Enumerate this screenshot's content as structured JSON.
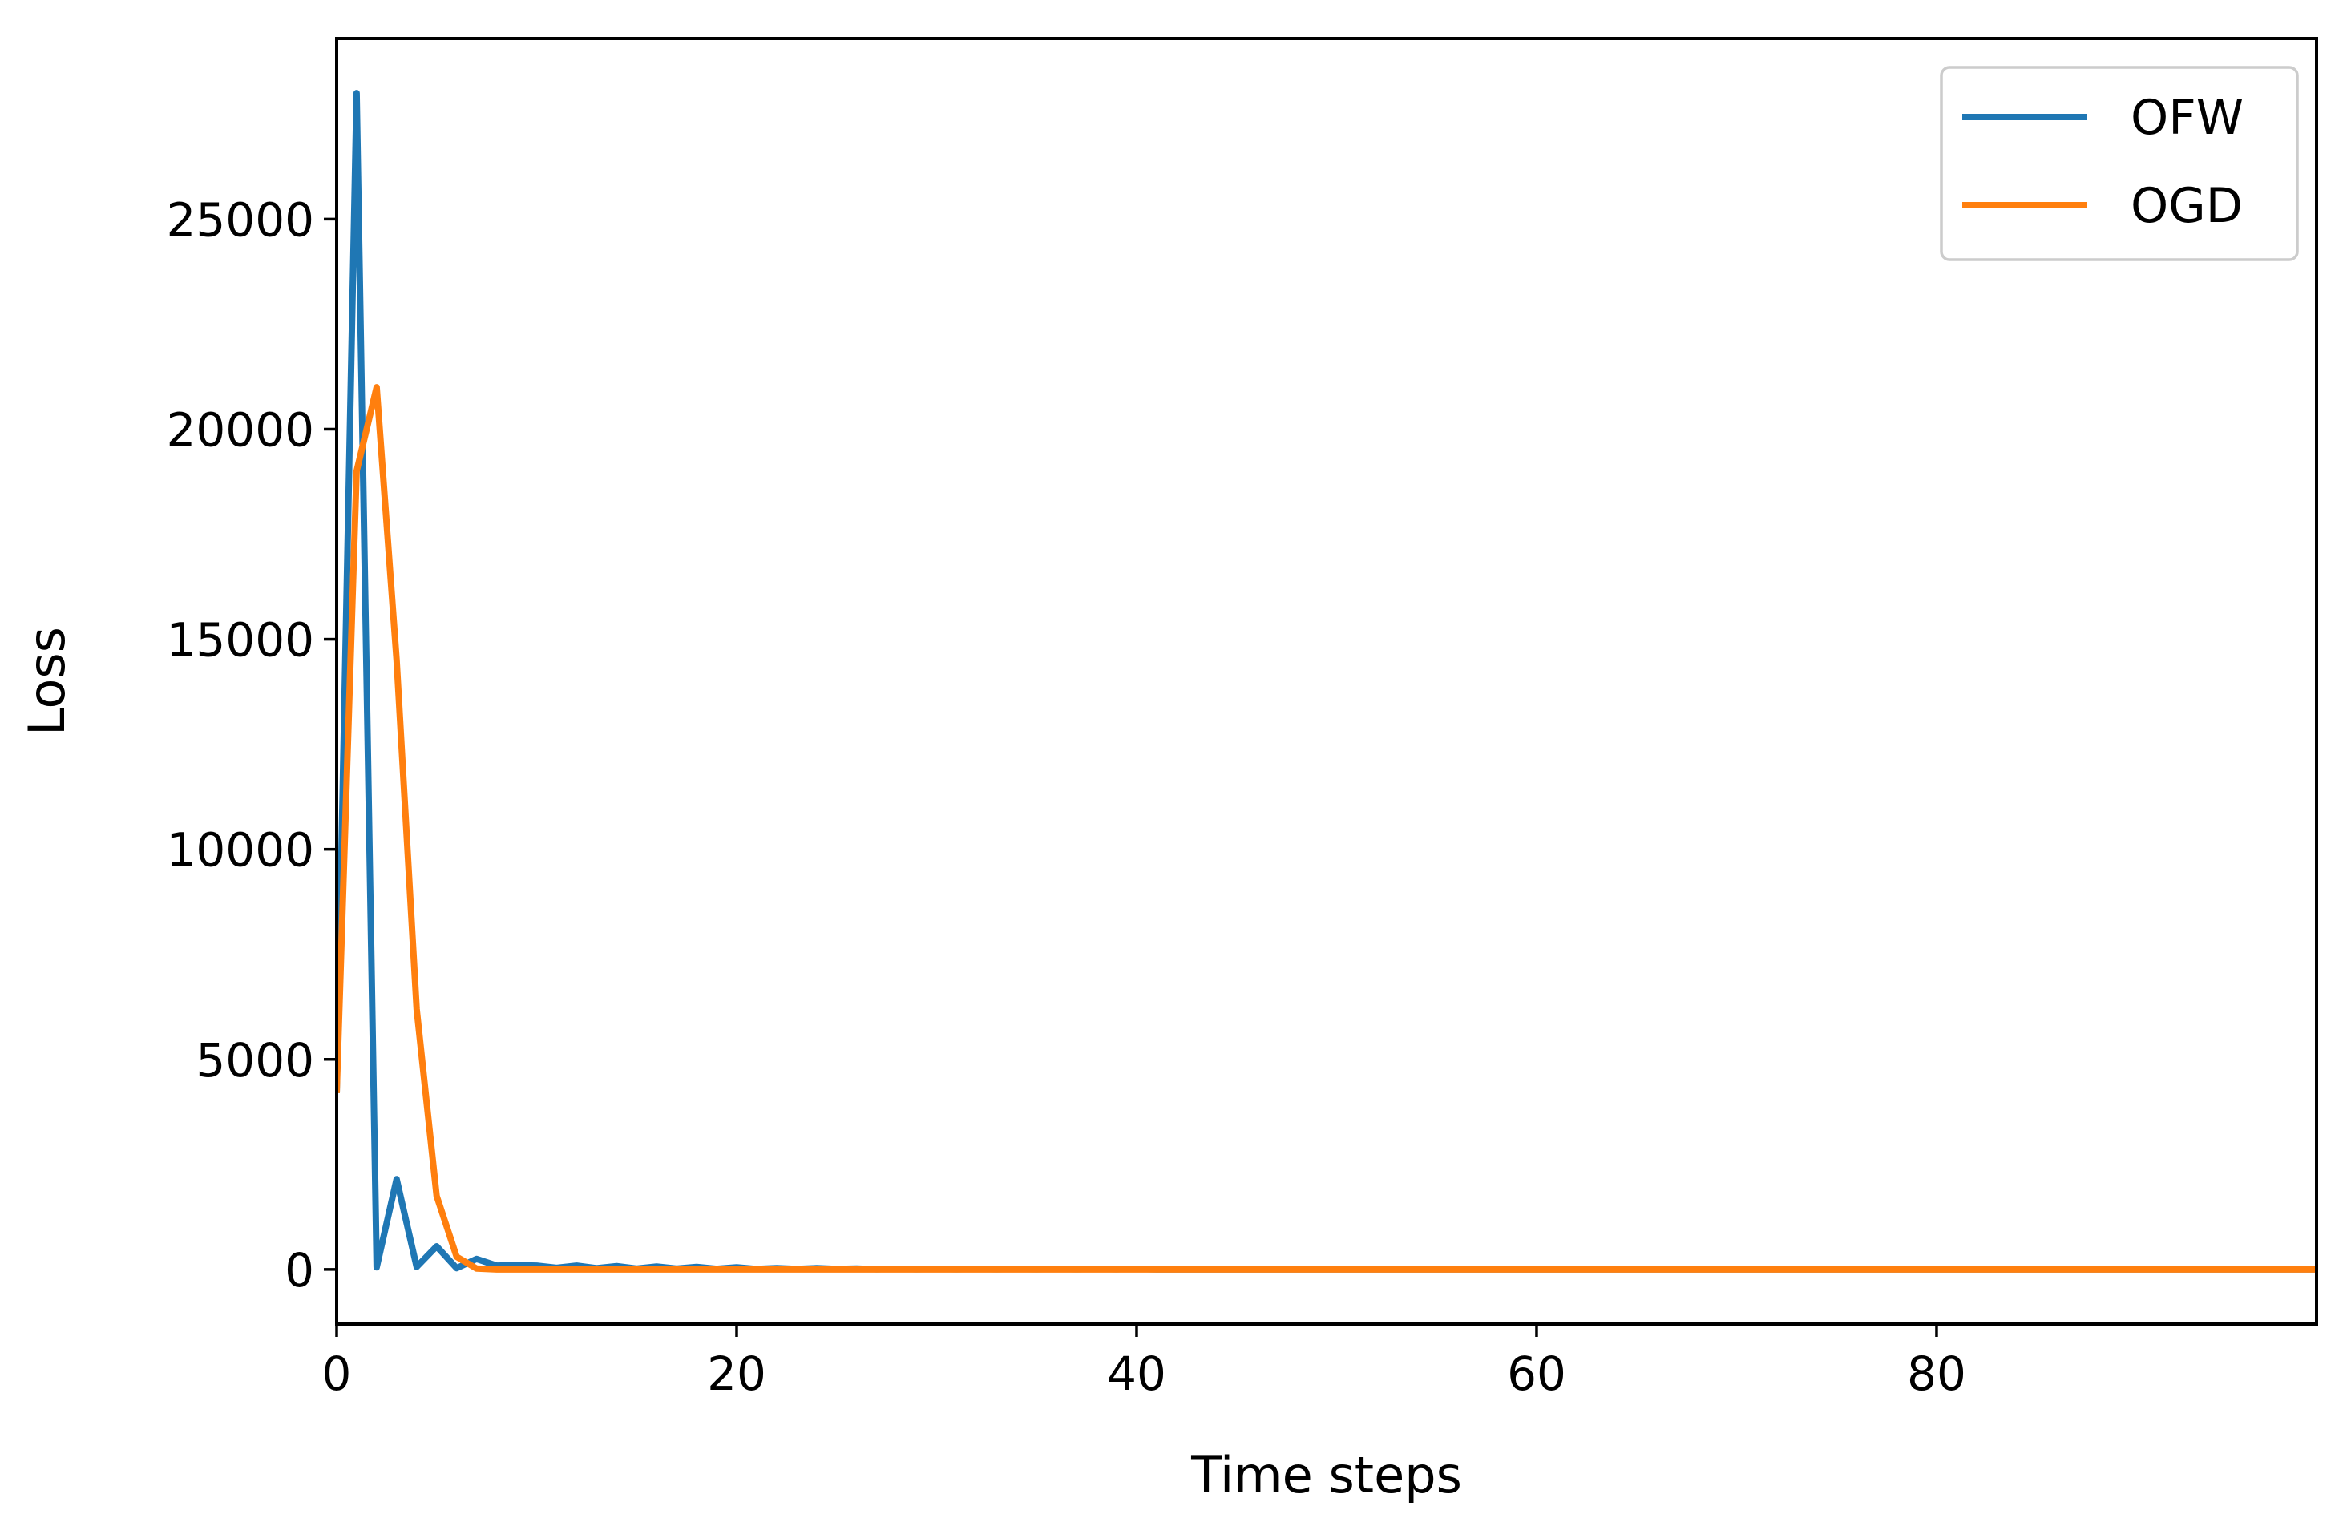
{
  "chart_data": {
    "type": "line",
    "title": "",
    "xlabel": "Time steps",
    "ylabel": "Loss",
    "xlim": [
      0,
      99
    ],
    "ylim": [
      -1300,
      29300
    ],
    "xticks": [
      0,
      20,
      40,
      60,
      80
    ],
    "xtick_labels": [
      "0",
      "20",
      "40",
      "60",
      "80"
    ],
    "yticks": [
      0,
      5000,
      10000,
      15000,
      20000,
      25000
    ],
    "ytick_labels": [
      "0",
      "5000",
      "10000",
      "15000",
      "20000",
      "25000"
    ],
    "grid": false,
    "legend_position": "top-right",
    "series": [
      {
        "name": "OFW",
        "color": "#1f77b4",
        "x": [
          0,
          1,
          2,
          3,
          4,
          5,
          6,
          7,
          8,
          9,
          10,
          11,
          12,
          13,
          14,
          15,
          16,
          17,
          18,
          19,
          20,
          21,
          22,
          23,
          24,
          25,
          26,
          27,
          28,
          29,
          30,
          31,
          32,
          33,
          34,
          35,
          36,
          37,
          38,
          39,
          40,
          41,
          42,
          43,
          44,
          45,
          46,
          47,
          48,
          49,
          50,
          51,
          52,
          53,
          54,
          55,
          56,
          57,
          58,
          59,
          60,
          61,
          62,
          63,
          64,
          65,
          66,
          67,
          68,
          69,
          70,
          71,
          72,
          73,
          74,
          75,
          76,
          77,
          78,
          79,
          80,
          81,
          82,
          83,
          84,
          85,
          86,
          87,
          88,
          89,
          90,
          91,
          92,
          93,
          94,
          95,
          96,
          97,
          98,
          99
        ],
        "y": [
          4200,
          28000,
          50,
          2150,
          60,
          550,
          30,
          250,
          90,
          100,
          90,
          40,
          90,
          30,
          80,
          20,
          70,
          20,
          60,
          15,
          50,
          10,
          30,
          10,
          30,
          10,
          20,
          5,
          15,
          5,
          10,
          5,
          10,
          5,
          10,
          5,
          10,
          5,
          10,
          5,
          10,
          3,
          3,
          3,
          3,
          3,
          3,
          3,
          3,
          3,
          3,
          3,
          3,
          3,
          3,
          3,
          3,
          3,
          3,
          3,
          3,
          3,
          3,
          3,
          3,
          3,
          3,
          3,
          3,
          3,
          3,
          3,
          3,
          3,
          3,
          3,
          3,
          3,
          3,
          3,
          3,
          3,
          3,
          3,
          3,
          3,
          3,
          3,
          3,
          3,
          3,
          3,
          3,
          3,
          3,
          3,
          3,
          3,
          3,
          3
        ]
      },
      {
        "name": "OGD",
        "color": "#ff7f0e",
        "x": [
          0,
          1,
          2,
          3,
          4,
          5,
          6,
          7,
          8,
          9,
          10,
          11,
          12,
          13,
          14,
          15,
          16,
          17,
          18,
          19,
          20,
          21,
          22,
          23,
          24,
          25,
          26,
          27,
          28,
          29,
          30,
          31,
          32,
          33,
          34,
          35,
          36,
          37,
          38,
          39,
          40,
          41,
          42,
          43,
          44,
          45,
          46,
          47,
          48,
          49,
          50,
          51,
          52,
          53,
          54,
          55,
          56,
          57,
          58,
          59,
          60,
          61,
          62,
          63,
          64,
          65,
          66,
          67,
          68,
          69,
          70,
          71,
          72,
          73,
          74,
          75,
          76,
          77,
          78,
          79,
          80,
          81,
          82,
          83,
          84,
          85,
          86,
          87,
          88,
          89,
          90,
          91,
          92,
          93,
          94,
          95,
          96,
          97,
          98,
          99
        ],
        "y": [
          4200,
          19000,
          21000,
          14500,
          6200,
          1750,
          300,
          20,
          0,
          0,
          0,
          0,
          0,
          0,
          0,
          0,
          0,
          0,
          0,
          0,
          0,
          0,
          0,
          0,
          0,
          0,
          0,
          0,
          0,
          0,
          0,
          0,
          0,
          0,
          0,
          0,
          0,
          0,
          0,
          0,
          0,
          0,
          0,
          0,
          0,
          0,
          0,
          0,
          0,
          0,
          0,
          0,
          0,
          0,
          0,
          0,
          0,
          0,
          0,
          0,
          0,
          0,
          0,
          0,
          0,
          0,
          0,
          0,
          0,
          0,
          0,
          0,
          0,
          0,
          0,
          0,
          0,
          0,
          0,
          0,
          0,
          0,
          0,
          0,
          0,
          0,
          0,
          0,
          0,
          0,
          0,
          0,
          0,
          0,
          0,
          0,
          0,
          0,
          0,
          0
        ]
      }
    ]
  }
}
